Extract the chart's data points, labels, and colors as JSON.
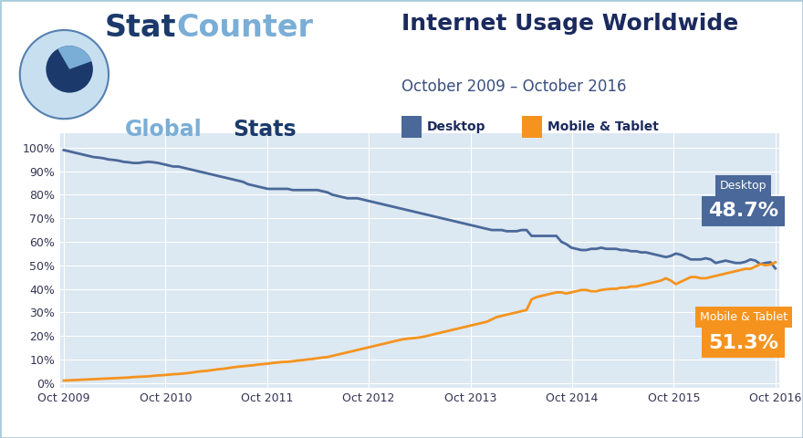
{
  "title": "Internet Usage Worldwide",
  "subtitle": "October 2009 – October 2016",
  "desktop_label": "Desktop",
  "mobile_label": "Mobile & Tablet",
  "desktop_color": "#4a6899",
  "mobile_color": "#f5931e",
  "desktop_end_pct": "48.7%",
  "mobile_end_pct": "51.3%",
  "desktop_box_color": "#4a6899",
  "mobile_box_color": "#f5931e",
  "bg_color": "#ffffff",
  "plot_bg_color": "#dce8f2",
  "grid_color": "#ffffff",
  "title_color": "#1b2a5e",
  "subtitle_color": "#3a5080",
  "stat_dark": "#1b2a5e",
  "stat_light": "#7aaed6",
  "yticks": [
    0,
    10,
    20,
    30,
    40,
    50,
    60,
    70,
    80,
    90,
    100
  ],
  "xtick_labels": [
    "Oct 2009",
    "Oct 2010",
    "Oct 2011",
    "Oct 2012",
    "Oct 2013",
    "Oct 2014",
    "Oct 2015",
    "Oct 2016"
  ],
  "desktop_data": [
    99.0,
    98.5,
    98.0,
    97.5,
    97.0,
    96.5,
    96.0,
    95.8,
    95.5,
    95.0,
    94.8,
    94.5,
    94.0,
    93.8,
    93.5,
    93.5,
    93.8,
    94.0,
    93.8,
    93.5,
    93.0,
    92.5,
    92.0,
    92.0,
    91.5,
    91.0,
    90.5,
    90.0,
    89.5,
    89.0,
    88.5,
    88.0,
    87.5,
    87.0,
    86.5,
    86.0,
    85.5,
    84.5,
    84.0,
    83.5,
    83.0,
    82.5,
    82.5,
    82.5,
    82.5,
    82.5,
    82.0,
    82.0,
    82.0,
    82.0,
    82.0,
    82.0,
    81.5,
    81.0,
    80.0,
    79.5,
    79.0,
    78.5,
    78.5,
    78.5,
    78.0,
    77.5,
    77.0,
    76.5,
    76.0,
    75.5,
    75.0,
    74.5,
    74.0,
    73.5,
    73.0,
    72.5,
    72.0,
    71.5,
    71.0,
    70.5,
    70.0,
    69.5,
    69.0,
    68.5,
    68.0,
    67.5,
    67.0,
    66.5,
    66.0,
    65.5,
    65.0,
    65.0,
    65.0,
    64.5,
    64.5,
    64.5,
    65.0,
    65.0,
    62.5,
    62.5,
    62.5,
    62.5,
    62.5,
    62.5,
    60.0,
    59.0,
    57.5,
    57.0,
    56.5,
    56.5,
    57.0,
    57.0,
    57.5,
    57.0,
    57.0,
    57.0,
    56.5,
    56.5,
    56.0,
    56.0,
    55.5,
    55.5,
    55.0,
    54.5,
    54.0,
    53.5,
    54.0,
    55.0,
    54.5,
    53.5,
    52.5,
    52.5,
    52.5,
    53.0,
    52.5,
    51.0,
    51.5,
    52.0,
    51.5,
    51.0,
    51.0,
    51.5,
    52.5,
    52.0,
    50.5,
    51.0,
    51.3,
    48.7
  ],
  "mobile_data": [
    1.0,
    1.1,
    1.2,
    1.3,
    1.4,
    1.5,
    1.6,
    1.7,
    1.8,
    1.9,
    2.0,
    2.1,
    2.2,
    2.3,
    2.5,
    2.6,
    2.7,
    2.8,
    3.0,
    3.2,
    3.3,
    3.5,
    3.7,
    3.8,
    4.0,
    4.2,
    4.5,
    4.8,
    5.0,
    5.2,
    5.5,
    5.8,
    6.0,
    6.3,
    6.6,
    6.9,
    7.1,
    7.3,
    7.5,
    7.8,
    8.0,
    8.2,
    8.5,
    8.7,
    8.9,
    9.0,
    9.2,
    9.5,
    9.7,
    10.0,
    10.2,
    10.5,
    10.8,
    11.0,
    11.5,
    12.0,
    12.5,
    13.0,
    13.5,
    14.0,
    14.5,
    15.0,
    15.5,
    16.0,
    16.5,
    17.0,
    17.5,
    18.0,
    18.5,
    18.8,
    19.0,
    19.2,
    19.5,
    20.0,
    20.5,
    21.0,
    21.5,
    22.0,
    22.5,
    23.0,
    23.5,
    24.0,
    24.5,
    25.0,
    25.5,
    26.0,
    27.0,
    28.0,
    28.5,
    29.0,
    29.5,
    30.0,
    30.5,
    31.0,
    35.5,
    36.5,
    37.0,
    37.5,
    38.0,
    38.5,
    38.5,
    38.0,
    38.5,
    39.0,
    39.5,
    39.5,
    39.0,
    39.0,
    39.5,
    39.8,
    40.0,
    40.0,
    40.5,
    40.5,
    41.0,
    41.0,
    41.5,
    42.0,
    42.5,
    43.0,
    43.5,
    44.5,
    43.5,
    42.0,
    43.0,
    44.0,
    45.0,
    45.0,
    44.5,
    44.5,
    45.0,
    45.5,
    46.0,
    46.5,
    47.0,
    47.5,
    48.0,
    48.5,
    48.5,
    49.5,
    50.5,
    50.0,
    50.3,
    51.3
  ]
}
